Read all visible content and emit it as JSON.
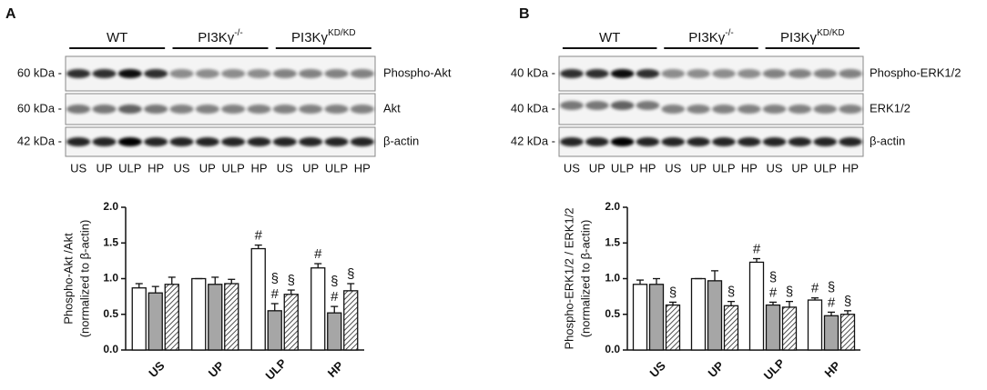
{
  "panels": [
    {
      "letter": "A",
      "groups": [
        {
          "base": "WT"
        },
        {
          "base": "PI3Kγ",
          "sup": "-/-"
        },
        {
          "base": "PI3Kγ",
          "sup": "KD/KD"
        }
      ],
      "rows": [
        {
          "size": "60 kDa -",
          "label": "Phospho-Akt"
        },
        {
          "size": "60 kDa -",
          "label": "Akt"
        },
        {
          "size": "42 kDa -",
          "label": "β-actin"
        }
      ],
      "lanes": [
        "US",
        "UP",
        "ULP",
        "HP",
        "US",
        "UP",
        "ULP",
        "HP",
        "US",
        "UP",
        "ULP",
        "HP"
      ]
    },
    {
      "letter": "B",
      "groups": [
        {
          "base": "WT"
        },
        {
          "base": "PI3Kγ",
          "sup": "-/-"
        },
        {
          "base": "PI3Kγ",
          "sup": "KD/KD"
        }
      ],
      "rows": [
        {
          "size": "40 kDa -",
          "label": "Phospho-ERK1/2"
        },
        {
          "size": "40 kDa -",
          "label": "ERK1/2"
        },
        {
          "size": "42 kDa -",
          "label": "β-actin"
        }
      ],
      "lanes": [
        "US",
        "UP",
        "ULP",
        "HP",
        "US",
        "UP",
        "ULP",
        "HP",
        "US",
        "UP",
        "ULP",
        "HP"
      ]
    }
  ],
  "chart_data": [
    {
      "type": "bar",
      "ylabel": [
        "Phospho-Akt /Akt",
        "(normalized to β-actin)"
      ],
      "categories": [
        "US",
        "UP",
        "ULP",
        "HP"
      ],
      "ylim": [
        0,
        2
      ],
      "yticks": [
        {
          "value": 0,
          "label": "0.0"
        },
        0.5,
        {
          "value": 1,
          "label": "1.0"
        },
        1.5,
        {
          "value": 2,
          "label": "2.0"
        }
      ],
      "series": [
        {
          "color": "#ffffff",
          "values": [
            0.87,
            1.0,
            1.42,
            1.15
          ],
          "errors": [
            0.06,
            0.0,
            0.05,
            0.06
          ],
          "marks": [
            null,
            null,
            [
              "#"
            ],
            [
              "#"
            ]
          ]
        },
        {
          "color": "#a6a6a6",
          "values": [
            0.8,
            0.92,
            0.55,
            0.52
          ],
          "errors": [
            0.09,
            0.1,
            0.1,
            0.09
          ],
          "marks": [
            null,
            null,
            [
              "§",
              "#"
            ],
            [
              "§",
              "#"
            ]
          ]
        },
        {
          "color": "#ffffff",
          "pattern": "hatch",
          "values": [
            0.92,
            0.93,
            0.78,
            0.83
          ],
          "errors": [
            0.1,
            0.06,
            0.06,
            0.1
          ],
          "marks": [
            null,
            null,
            [
              "§"
            ],
            [
              "§"
            ]
          ]
        }
      ]
    },
    {
      "type": "bar",
      "ylabel": [
        "Phospho-ERK1/2 / ERK1/2",
        "(normalized to β-actin)"
      ],
      "categories": [
        "US",
        "UP",
        "ULP",
        "HP"
      ],
      "ylim": [
        0,
        2
      ],
      "yticks": [
        {
          "value": 0,
          "label": "0.0"
        },
        0.5,
        {
          "value": 1,
          "label": "1.0"
        },
        1.5,
        {
          "value": 2,
          "label": "2.0"
        }
      ],
      "series": [
        {
          "color": "#ffffff",
          "values": [
            0.92,
            1.0,
            1.23,
            0.7
          ],
          "errors": [
            0.06,
            0.0,
            0.05,
            0.03
          ],
          "marks": [
            null,
            null,
            [
              "#"
            ],
            [
              "#"
            ]
          ]
        },
        {
          "color": "#a6a6a6",
          "values": [
            0.92,
            0.97,
            0.63,
            0.48
          ],
          "errors": [
            0.08,
            0.14,
            0.04,
            0.05
          ],
          "marks": [
            null,
            null,
            [
              "§",
              "#"
            ],
            [
              "§",
              "#"
            ]
          ]
        },
        {
          "color": "#ffffff",
          "pattern": "hatch",
          "values": [
            0.63,
            0.62,
            0.6,
            0.5
          ],
          "errors": [
            0.04,
            0.06,
            0.08,
            0.05
          ],
          "marks": [
            [
              "§"
            ],
            [
              "§"
            ],
            [
              "§"
            ],
            [
              "§"
            ]
          ]
        }
      ]
    }
  ]
}
